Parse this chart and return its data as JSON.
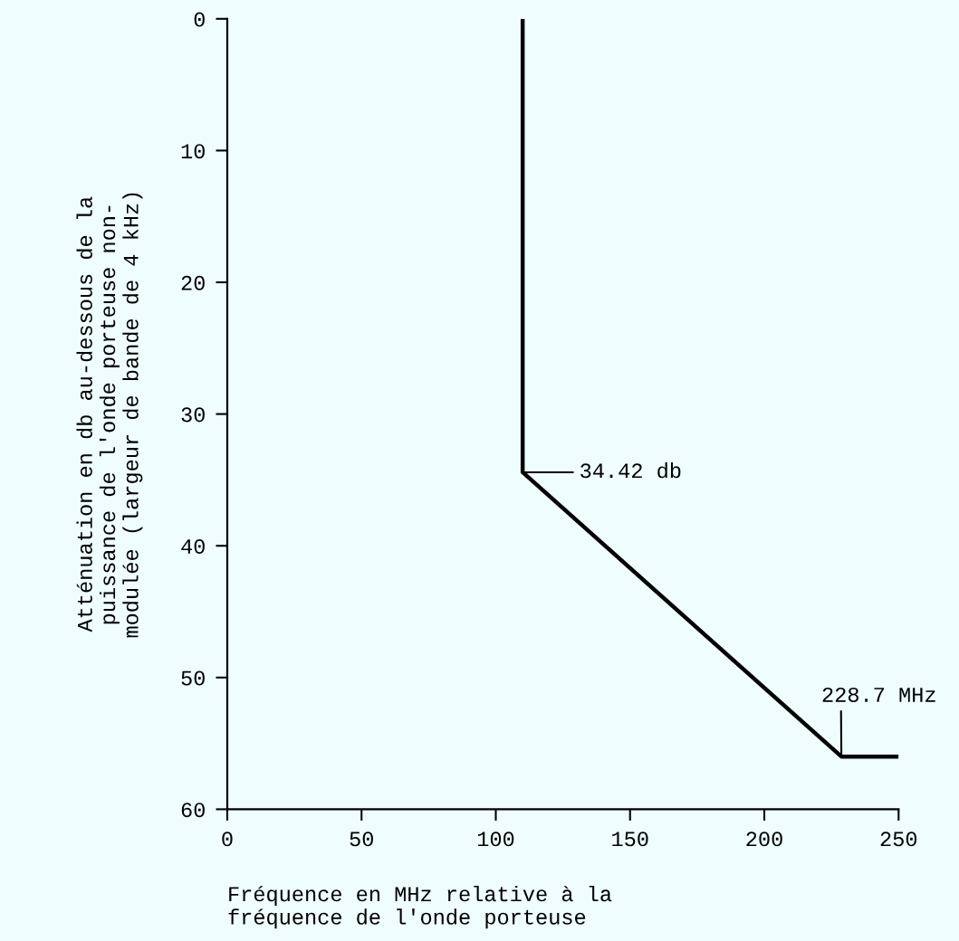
{
  "chart_data": {
    "type": "line",
    "xlabel": "Fréquence en MHz relative à la\nfréquence de l'onde porteuse",
    "ylabel": "Atténuation en db au-dessous de la\npuissance de l'onde porteuse non-\nmodulée (largeur de bande de 4 kHz)",
    "x": [
      110,
      110,
      228.7,
      250
    ],
    "series": [
      {
        "color": "#000000",
        "values": [
          0,
          34.42,
          56,
          56
        ]
      }
    ],
    "xlim": [
      0,
      250
    ],
    "xticks": [
      0,
      50,
      100,
      150,
      200,
      250
    ],
    "ylim": [
      60,
      0
    ],
    "yticks": [
      0,
      10,
      20,
      30,
      40,
      50,
      60
    ],
    "grid": false,
    "legend": false,
    "marker": "none",
    "line_style": "solid",
    "annotations": [
      {
        "text": "34.42 db",
        "x": 110,
        "y": 34.42
      },
      {
        "text": "228.7 MHz",
        "x": 228.7,
        "y": 56
      }
    ]
  }
}
